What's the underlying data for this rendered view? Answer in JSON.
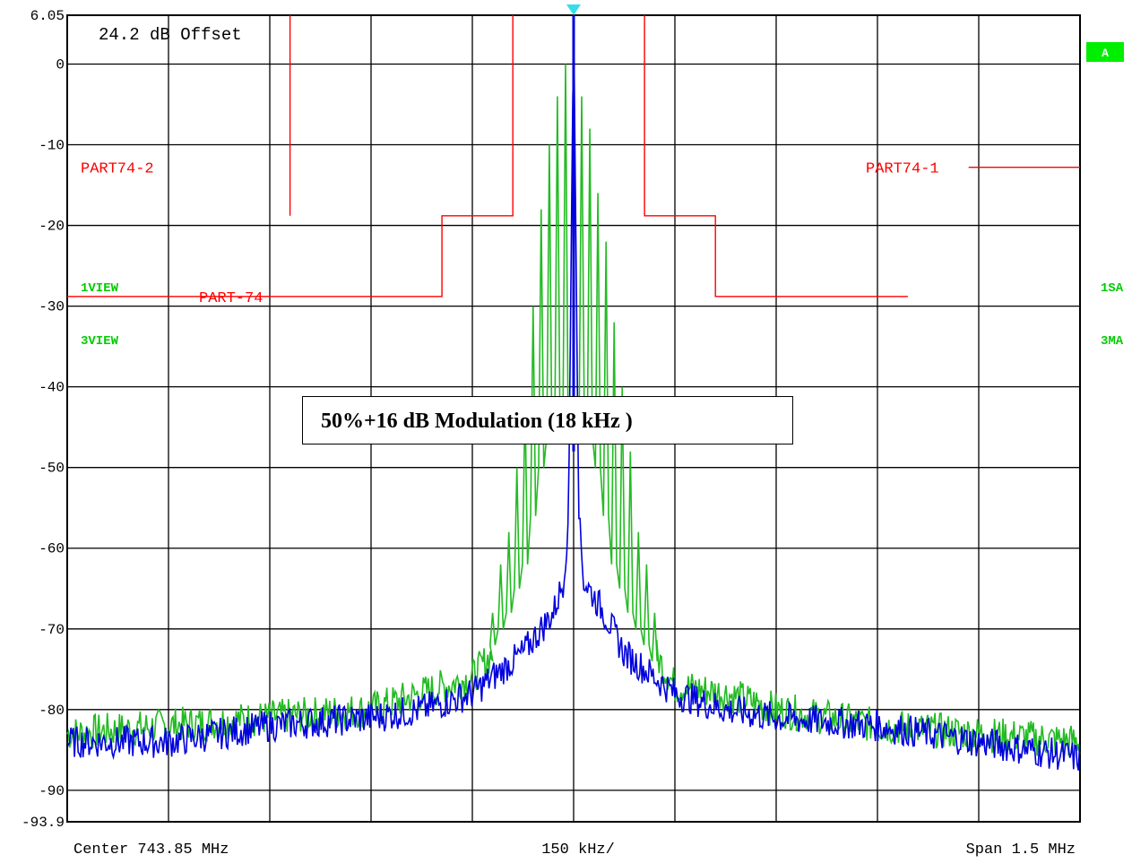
{
  "chart_data": {
    "type": "line",
    "offset_label": "24.2 dB Offset",
    "y_tick_labels": [
      "6.05",
      "0",
      "-10",
      "-20",
      "-30",
      "-40",
      "-50",
      "-60",
      "-70",
      "-80",
      "-90",
      "-93.9"
    ],
    "ylim": [
      -93.9,
      6.05
    ],
    "x_div_count": 10,
    "footer": {
      "center": "Center 743.85 MHz",
      "per_div": "150 kHz/",
      "span": "Span 1.5 MHz"
    },
    "annotation": "50%+16 dB Modulation (18 kHz )",
    "marker_badge": "A",
    "trace_labels": {
      "left_1": "1VIEW",
      "left_3": "3VIEW",
      "right_1": "1SA",
      "right_3": "3MA"
    },
    "colors": {
      "trace_1": "#22bb22",
      "trace_3": "#0000dd",
      "limit": "#ff0000",
      "badge": "#00ee00",
      "marker": "#33ddee",
      "grid": "#000000"
    },
    "limit_lines": [
      {
        "name": "PART74-2",
        "points": [
          [
            2.2,
            -18.8
          ],
          [
            2.2,
            6.05
          ]
        ]
      },
      {
        "name": "PART-74",
        "points": [
          [
            0.0,
            -28.8
          ],
          [
            3.7,
            -28.8
          ],
          [
            3.7,
            -18.8
          ],
          [
            4.4,
            -18.8
          ],
          [
            4.4,
            6.05
          ]
        ]
      },
      {
        "name": "PART74-1",
        "points": [
          [
            5.7,
            6.05
          ],
          [
            5.7,
            -18.8
          ],
          [
            6.4,
            -18.8
          ],
          [
            6.4,
            -28.8
          ],
          [
            8.3,
            -28.8
          ]
        ]
      },
      {
        "name": "PART74-1-ext",
        "points": [
          [
            8.9,
            -12.8
          ],
          [
            10.0,
            -12.8
          ]
        ]
      }
    ],
    "series": [
      {
        "id": "trace_1",
        "spikes_x": [
          4.2,
          4.28,
          4.36,
          4.44,
          4.52,
          4.6,
          4.68,
          4.76,
          4.84,
          4.92,
          5.08,
          5.16,
          5.24,
          5.32,
          5.4,
          5.48,
          5.56,
          5.64,
          5.72,
          5.8
        ],
        "spikes_y": [
          -68,
          -62,
          -58,
          -50,
          -42,
          -30,
          -18,
          -10,
          -4,
          0,
          -4,
          -8,
          -16,
          -22,
          -32,
          -40,
          -48,
          -58,
          -62,
          -68
        ],
        "trough_y": [
          -72,
          -70,
          -68,
          -65,
          -62,
          -56,
          -50,
          -46,
          -44,
          -44,
          -44,
          -46,
          -50,
          -56,
          -62,
          -65,
          -68,
          -70,
          -72,
          -74
        ],
        "noise": [
          [
            0.0,
            -83
          ],
          [
            1.0,
            -82
          ],
          [
            2.0,
            -81
          ],
          [
            3.0,
            -80
          ],
          [
            3.5,
            -78
          ],
          [
            4.0,
            -76
          ],
          [
            4.2,
            -73
          ],
          [
            5.8,
            -73
          ],
          [
            6.0,
            -77
          ],
          [
            6.5,
            -78
          ],
          [
            7.0,
            -80
          ],
          [
            8.0,
            -82
          ],
          [
            9.0,
            -83
          ],
          [
            10.0,
            -84
          ]
        ]
      },
      {
        "id": "trace_3",
        "points": [
          [
            0.0,
            -84
          ],
          [
            1.0,
            -84
          ],
          [
            1.5,
            -83
          ],
          [
            2.0,
            -82
          ],
          [
            3.0,
            -81
          ],
          [
            3.5,
            -80
          ],
          [
            4.0,
            -78
          ],
          [
            4.2,
            -76
          ],
          [
            4.5,
            -73
          ],
          [
            4.8,
            -68
          ],
          [
            4.9,
            -64
          ],
          [
            4.95,
            -56
          ],
          [
            5.0,
            6.05
          ],
          [
            5.05,
            -56
          ],
          [
            5.1,
            -64
          ],
          [
            5.3,
            -68
          ],
          [
            5.5,
            -73
          ],
          [
            5.8,
            -76
          ],
          [
            6.0,
            -78
          ],
          [
            6.5,
            -80
          ],
          [
            7.0,
            -81
          ],
          [
            8.0,
            -82
          ],
          [
            9.0,
            -84
          ],
          [
            10.0,
            -86
          ]
        ]
      }
    ]
  }
}
